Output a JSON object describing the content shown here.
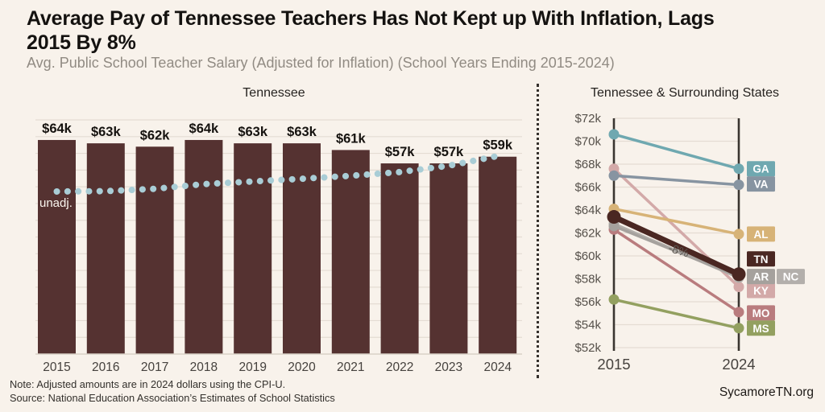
{
  "header": {
    "title_lines": [
      "Average Pay of Tennessee Teachers Has Not Kept up With Inflation, Lags",
      "2015 By 8%"
    ],
    "subtitle": "Avg. Public School Teacher Salary (Adjusted for Inflation) (School Years Ending 2015-2024)"
  },
  "footer": {
    "note": "Note: Adjusted amounts are in 2024 dollars using the CPI-U.",
    "source": "Source: National Education Association’s Estimates of School Statistics",
    "site": "SycamoreTN.org"
  },
  "colors": {
    "background": "#f8f2eb",
    "bar": "#553231",
    "unadjusted_dots": "#a9cdd6",
    "grid": "#e4dcd3",
    "axis_light": "#d9d1c7",
    "axis_dark": "#3a3530",
    "divider": "#35302c",
    "title_text": "#141210",
    "subtitle_text": "#918b83"
  },
  "chart_data": [
    {
      "type": "bar",
      "title": "Tennessee",
      "categories": [
        "2015",
        "2016",
        "2017",
        "2018",
        "2019",
        "2020",
        "2021",
        "2022",
        "2023",
        "2024"
      ],
      "values": [
        64,
        63,
        62,
        64,
        63,
        63,
        61,
        57,
        57,
        59
      ],
      "bar_labels": [
        "$64k",
        "$63k",
        "$62k",
        "$64k",
        "$63k",
        "$63k",
        "$61k",
        "$57k",
        "$57k",
        "$59k"
      ],
      "units": "USD thousands (2024 dollars)",
      "xlabel": "",
      "ylabel": "",
      "ylim": [
        0,
        70
      ],
      "grid": "horizontal gridlines every $5k, no y tick labels",
      "overlay_line": {
        "name": "Unadjusted salary",
        "label": "unadj.",
        "style": "dotted",
        "values": [
          48.6,
          48.7,
          49.4,
          50.8,
          51.6,
          52.4,
          53.3,
          54.4,
          56.3,
          59.2
        ]
      }
    },
    {
      "type": "line",
      "variant": "slope",
      "title": "Tennessee & Surrounding States",
      "x": [
        "2015",
        "2024"
      ],
      "ylim": [
        52,
        72
      ],
      "ytick_labels": [
        "$72k",
        "$70k",
        "$68k",
        "$66k",
        "$64k",
        "$62k",
        "$60k",
        "$58k",
        "$56k",
        "$54k",
        "$52k"
      ],
      "legend_position": "right-edge state badges",
      "annotation": {
        "text": "-8%",
        "series": "TN"
      },
      "series": [
        {
          "name": "KY",
          "values": [
            67.6,
            57.3
          ],
          "color": "#d3a9a8",
          "label_dy": 4.5
        },
        {
          "name": "MO",
          "values": [
            62.3,
            55.1
          ],
          "color": "#b97c7e",
          "label_dy": 1
        },
        {
          "name": "MS",
          "values": [
            56.2,
            53.7
          ],
          "color": "#93a060",
          "label_dy": 0
        },
        {
          "name": "AL",
          "values": [
            64.1,
            61.9
          ],
          "color": "#d7b377",
          "label_dy": 0
        },
        {
          "name": "GA",
          "values": [
            70.6,
            67.6
          ],
          "color": "#6fa8b0",
          "label_dy": 0
        },
        {
          "name": "VA",
          "values": [
            67.0,
            66.2
          ],
          "color": "#8794a1",
          "label_dy": -1
        },
        {
          "name": "NC",
          "values": [
            62.8,
            58.1
          ],
          "color": "#b3afab",
          "label_dx": 37,
          "label_dy": -1.4
        },
        {
          "name": "AR",
          "values": [
            62.6,
            58.2
          ],
          "color": "#a5a19d",
          "label_dy": 0
        },
        {
          "name": "TN",
          "values": [
            63.4,
            58.4
          ],
          "color": "#4a2722",
          "emphasis": true,
          "label_dy": -19
        }
      ]
    }
  ]
}
